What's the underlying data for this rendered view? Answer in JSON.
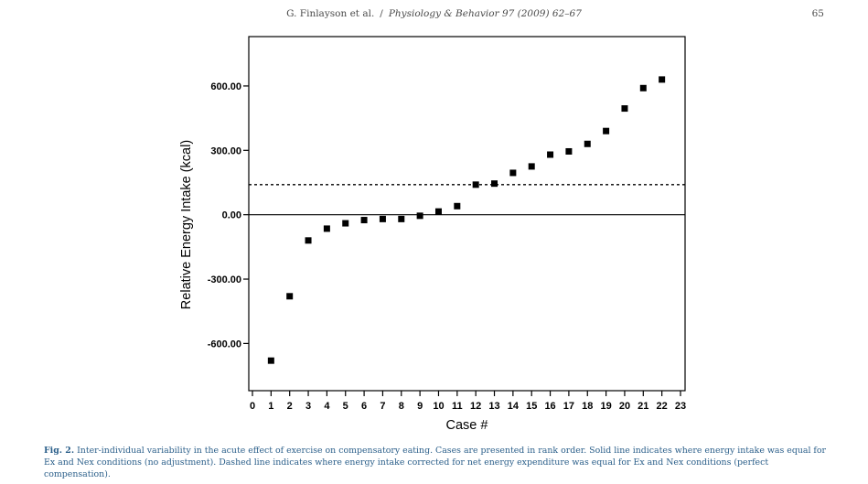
{
  "header": {
    "authors": "G. Finlayson et al.",
    "separator": "/",
    "journal": "Physiology & Behavior 97 (2009) 62–67",
    "page": "65"
  },
  "chart_data": {
    "type": "scatter",
    "xlabel": "Case #",
    "ylabel": "Relative Energy Intake (kcal)",
    "x_ticks": [
      0,
      1,
      2,
      3,
      4,
      5,
      6,
      7,
      8,
      9,
      10,
      11,
      12,
      13,
      14,
      15,
      16,
      17,
      18,
      19,
      20,
      21,
      22,
      23
    ],
    "y_ticks": [
      -600,
      -300,
      0,
      300,
      600
    ],
    "y_tick_labels": [
      "-600.00",
      "-300.00",
      "0.00",
      "300.00",
      "600.00"
    ],
    "xlim": [
      0,
      23
    ],
    "ylim": [
      -820,
      830
    ],
    "grid": false,
    "points": {
      "x": [
        1,
        2,
        3,
        4,
        5,
        6,
        7,
        8,
        9,
        10,
        11,
        12,
        13,
        14,
        15,
        16,
        17,
        18,
        19,
        20,
        21,
        22
      ],
      "y": [
        -680,
        -380,
        -120,
        -65,
        -40,
        -25,
        -20,
        -20,
        -5,
        15,
        40,
        140,
        145,
        195,
        225,
        280,
        295,
        330,
        390,
        495,
        590,
        630
      ]
    },
    "reference_lines": {
      "solid_y": 0,
      "dashed_y": 140
    }
  },
  "caption": {
    "label": "Fig. 2.",
    "text": "Inter-individual variability in the acute effect of exercise on compensatory eating. Cases are presented in rank order. Solid line indicates where energy intake was equal for Ex and Nex conditions (no adjustment). Dashed line indicates where energy intake corrected for net energy expenditure was equal for Ex and Nex conditions (perfect compensation)."
  },
  "colors": {
    "ink": "#000000",
    "caption": "#2b5f8a",
    "header": "#4a4a4a"
  }
}
